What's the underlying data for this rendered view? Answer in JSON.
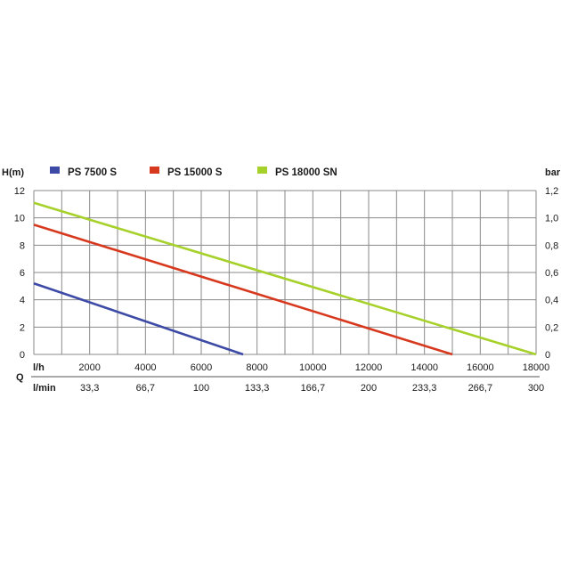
{
  "chart_data": {
    "type": "line",
    "y_left_label": "H(m)",
    "y_right_label": "bar",
    "x_axis_symbol": "Q",
    "x_unit_primary": "l/h",
    "x_unit_secondary": "l/min",
    "x_ticks": [
      "2000",
      "4000",
      "6000",
      "8000",
      "10000",
      "12000",
      "14000",
      "16000",
      "18000"
    ],
    "x_ticks_secondary": [
      "33,3",
      "66,7",
      "100",
      "133,3",
      "166,7",
      "200",
      "233,3",
      "266,7",
      "300"
    ],
    "y_left_ticks": [
      "12",
      "10",
      "8",
      "6",
      "4",
      "2",
      "0"
    ],
    "y_right_ticks": [
      "1,2",
      "1,0",
      "0,8",
      "0,6",
      "0,4",
      "0,2",
      "0"
    ],
    "xlim": [
      0,
      18000
    ],
    "ylim": [
      0,
      12
    ],
    "grid": true,
    "legend_position": "top",
    "series": [
      {
        "name": "PS 7500 S",
        "color": "#3d4aa6",
        "x": [
          0,
          7500
        ],
        "y": [
          5.2,
          0
        ]
      },
      {
        "name": "PS 15000 S",
        "color": "#d7391f",
        "x": [
          0,
          15000
        ],
        "y": [
          9.5,
          0
        ]
      },
      {
        "name": "PS 18000 SN",
        "color": "#a6d12a",
        "x": [
          0,
          18000
        ],
        "y": [
          11.1,
          0
        ]
      }
    ]
  }
}
